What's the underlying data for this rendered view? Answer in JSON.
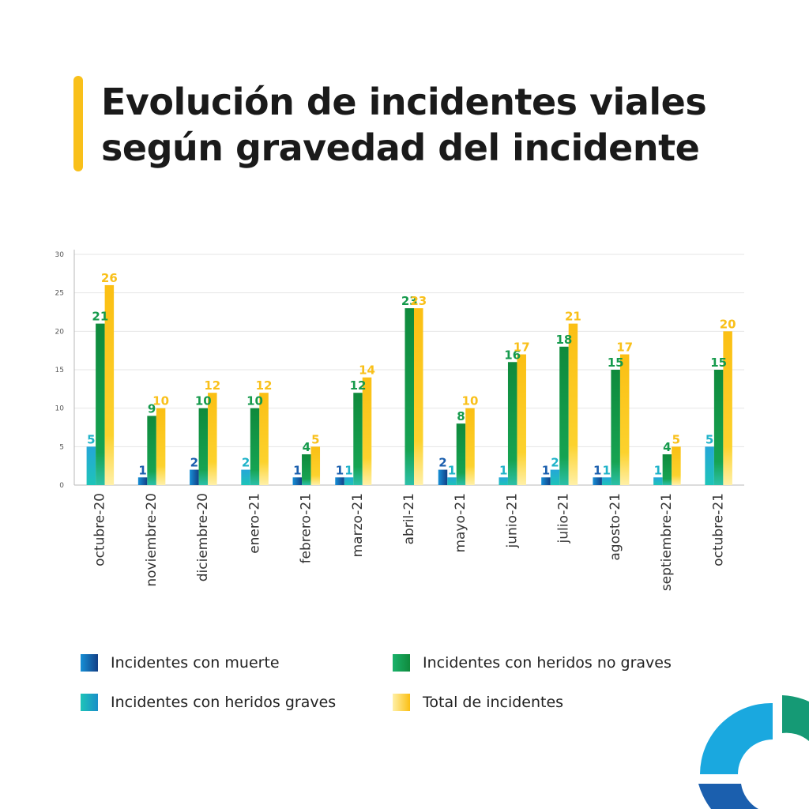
{
  "title": {
    "line1": "Evolución de incidentes viales",
    "line2": "según gravedad del incidente"
  },
  "colors": {
    "accent": "#f9c01a",
    "muerte": "#1b5fae",
    "graves": "#1fb3c9",
    "no_graves": "#159a4c",
    "total": "#f9c01a"
  },
  "chart_data": {
    "type": "bar",
    "title": "Evolución de incidentes viales según gravedad del incidente",
    "xlabel": "",
    "ylabel": "",
    "ylim": [
      0,
      30
    ],
    "yticks": [
      0,
      5,
      10,
      15,
      20,
      25,
      30
    ],
    "grid": true,
    "legend_position": "bottom",
    "categories": [
      "octubre-20",
      "noviembre-20",
      "diciembre-20",
      "enero-21",
      "febrero-21",
      "marzo-21",
      "abril-21",
      "mayo-21",
      "junio-21",
      "julio-21",
      "agosto-21",
      "septiembre-21",
      "octubre-21"
    ],
    "series": [
      {
        "name": "Incidentes con muerte",
        "values": [
          null,
          1,
          2,
          null,
          1,
          1,
          null,
          2,
          null,
          1,
          1,
          null,
          null
        ]
      },
      {
        "name": "Incidentes con heridos graves",
        "values": [
          5,
          null,
          null,
          2,
          null,
          1,
          null,
          1,
          1,
          2,
          1,
          1,
          5
        ]
      },
      {
        "name": "Incidentes con heridos no graves",
        "values": [
          21,
          9,
          10,
          10,
          4,
          12,
          23,
          8,
          16,
          18,
          15,
          4,
          15
        ]
      },
      {
        "name": "Total de incidentes",
        "values": [
          26,
          10,
          12,
          12,
          5,
          14,
          23,
          10,
          17,
          21,
          17,
          5,
          20
        ]
      }
    ]
  },
  "legend": [
    {
      "label": "Incidentes con muerte"
    },
    {
      "label": "Incidentes con heridos graves"
    },
    {
      "label": "Incidentes con heridos no graves"
    },
    {
      "label": "Total de incidentes"
    }
  ]
}
